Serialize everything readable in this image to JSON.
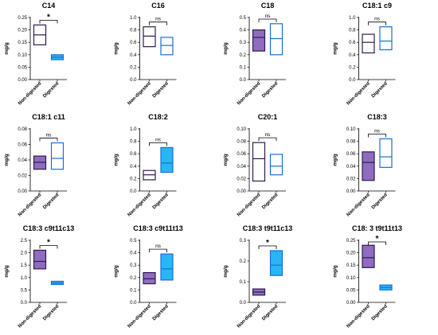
{
  "colors": {
    "nondigested_stroke": "#2e1a4f",
    "nondigested_fill": "#8f6cbf",
    "digested_stroke": "#1a6fd6",
    "digested_fill": "#29b6f6"
  },
  "chart_data": [
    {
      "type": "box",
      "title": "C14",
      "ylabel": "mg/g",
      "categories": [
        "Non-digested",
        "Digested"
      ],
      "ylim": [
        0,
        0.25
      ],
      "yticks": [
        "0.00",
        "0.05",
        "0.10",
        "0.15",
        "0.20",
        "0.25"
      ],
      "series": [
        {
          "name": "Non-digested",
          "min": 0.14,
          "median": 0.18,
          "max": 0.22,
          "filled": false
        },
        {
          "name": "Digested",
          "min": 0.08,
          "median": 0.09,
          "max": 0.1,
          "filled": true
        }
      ],
      "significance": "*"
    },
    {
      "type": "box",
      "title": "C16",
      "ylabel": "mg/g",
      "categories": [
        "Non-digested",
        "Digested"
      ],
      "ylim": [
        0,
        1.0
      ],
      "yticks": [
        "0.0",
        "0.2",
        "0.4",
        "0.6",
        "0.8",
        "1.0"
      ],
      "series": [
        {
          "name": "Non-digested",
          "min": 0.53,
          "median": 0.7,
          "max": 0.85,
          "filled": false
        },
        {
          "name": "Digested",
          "min": 0.4,
          "median": 0.55,
          "max": 0.68,
          "filled": false
        }
      ],
      "significance": "ns"
    },
    {
      "type": "box",
      "title": "C18",
      "ylabel": "mg/g",
      "categories": [
        "Non-digested",
        "Digested"
      ],
      "ylim": [
        0,
        0.5
      ],
      "yticks": [
        "0.0",
        "0.1",
        "0.2",
        "0.3",
        "0.4",
        "0.5"
      ],
      "series": [
        {
          "name": "Non-digested",
          "min": 0.23,
          "median": 0.34,
          "max": 0.4,
          "filled": true
        },
        {
          "name": "Digested",
          "min": 0.2,
          "median": 0.33,
          "max": 0.45,
          "filled": false
        }
      ],
      "significance": "ns"
    },
    {
      "type": "box",
      "title": "C18:1 c9",
      "ylabel": "mg/g",
      "categories": [
        "Non-digested",
        "Digested"
      ],
      "ylim": [
        0,
        1.0
      ],
      "yticks": [
        "0.0",
        "0.2",
        "0.4",
        "0.6",
        "0.8",
        "1.0"
      ],
      "series": [
        {
          "name": "Non-digested",
          "min": 0.43,
          "median": 0.6,
          "max": 0.73,
          "filled": false
        },
        {
          "name": "Digested",
          "min": 0.48,
          "median": 0.62,
          "max": 0.85,
          "filled": false
        }
      ],
      "significance": "ns"
    },
    {
      "type": "box",
      "title": "C18:1 c11",
      "ylabel": "mg/g",
      "categories": [
        "Non-digested",
        "Digested"
      ],
      "ylim": [
        0,
        0.08
      ],
      "yticks": [
        "0.00",
        "0.02",
        "0.04",
        "0.06",
        "0.08"
      ],
      "series": [
        {
          "name": "Non-digested",
          "min": 0.028,
          "median": 0.037,
          "max": 0.045,
          "filled": true
        },
        {
          "name": "Digested",
          "min": 0.028,
          "median": 0.042,
          "max": 0.062,
          "filled": false
        }
      ],
      "significance": "ns"
    },
    {
      "type": "box",
      "title": "C18:2",
      "ylabel": "mg/g",
      "categories": [
        "Non-digested",
        "Digested"
      ],
      "ylim": [
        0,
        1.0
      ],
      "yticks": [
        "0.0",
        "0.2",
        "0.4",
        "0.6",
        "0.8",
        "1.0"
      ],
      "series": [
        {
          "name": "Non-digested",
          "min": 0.18,
          "median": 0.26,
          "max": 0.33,
          "filled": false
        },
        {
          "name": "Digested",
          "min": 0.3,
          "median": 0.45,
          "max": 0.7,
          "filled": true
        }
      ],
      "significance": "ns"
    },
    {
      "type": "box",
      "title": "C20:1",
      "ylabel": "mg/g",
      "categories": [
        "Non-digested",
        "Digested"
      ],
      "ylim": [
        0,
        0.1
      ],
      "yticks": [
        "0.00",
        "0.02",
        "0.04",
        "0.06",
        "0.08",
        "0.10"
      ],
      "series": [
        {
          "name": "Non-digested",
          "min": 0.016,
          "median": 0.052,
          "max": 0.078,
          "filled": false
        },
        {
          "name": "Digested",
          "min": 0.026,
          "median": 0.04,
          "max": 0.059,
          "filled": false
        }
      ],
      "significance": "ns"
    },
    {
      "type": "box",
      "title": "C18:3",
      "ylabel": "mg/g",
      "categories": [
        "Non-digested",
        "Digested"
      ],
      "ylim": [
        0,
        0.1
      ],
      "yticks": [
        "0.00",
        "0.02",
        "0.04",
        "0.06",
        "0.08",
        "0.10"
      ],
      "series": [
        {
          "name": "Non-digested",
          "min": 0.017,
          "median": 0.046,
          "max": 0.063,
          "filled": true
        },
        {
          "name": "Digested",
          "min": 0.038,
          "median": 0.055,
          "max": 0.084,
          "filled": false
        }
      ],
      "significance": "ns"
    },
    {
      "type": "box",
      "title": "C18:3 c9t11c13",
      "ylabel": "mg/g",
      "categories": [
        "Non-digested",
        "Digested"
      ],
      "ylim": [
        0,
        2.5
      ],
      "yticks": [
        "0.0",
        "0.5",
        "1.0",
        "1.5",
        "2.0",
        "2.5"
      ],
      "series": [
        {
          "name": "Non-digested",
          "min": 1.35,
          "median": 1.65,
          "max": 2.1,
          "filled": true
        },
        {
          "name": "Digested",
          "min": 0.72,
          "median": 0.78,
          "max": 0.85,
          "filled": true
        }
      ],
      "significance": "*"
    },
    {
      "type": "box",
      "title": "C18:3 c9t11t13",
      "ylabel": "mg/g",
      "categories": [
        "Non-digested",
        "Digested"
      ],
      "ylim": [
        0,
        0.5
      ],
      "yticks": [
        "0.0",
        "0.1",
        "0.2",
        "0.3",
        "0.4",
        "0.5"
      ],
      "series": [
        {
          "name": "Non-digested",
          "min": 0.15,
          "median": 0.19,
          "max": 0.24,
          "filled": true
        },
        {
          "name": "Digested",
          "min": 0.18,
          "median": 0.27,
          "max": 0.39,
          "filled": true
        }
      ],
      "significance": "ns"
    },
    {
      "type": "box",
      "title": "C18:3 t9t11c13",
      "ylabel": "mg/g",
      "categories": [
        "Non-digested",
        "Digested"
      ],
      "ylim": [
        0,
        0.3
      ],
      "yticks": [
        "0.0",
        "0.1",
        "0.2",
        "0.3"
      ],
      "series": [
        {
          "name": "Non-digested",
          "min": 0.035,
          "median": 0.05,
          "max": 0.065,
          "filled": true
        },
        {
          "name": "Digested",
          "min": 0.13,
          "median": 0.18,
          "max": 0.25,
          "filled": true
        }
      ],
      "significance": "*"
    },
    {
      "type": "box",
      "title": "C18: 3 t9t11t13",
      "ylabel": "mg/g",
      "categories": [
        "Non-digested",
        "Digested"
      ],
      "ylim": [
        0,
        0.25
      ],
      "yticks": [
        "0.00",
        "0.05",
        "0.10",
        "0.15",
        "0.20",
        "0.25"
      ],
      "series": [
        {
          "name": "Non-digested",
          "min": 0.14,
          "median": 0.18,
          "max": 0.23,
          "filled": true
        },
        {
          "name": "Digested",
          "min": 0.05,
          "median": 0.06,
          "max": 0.07,
          "filled": true
        }
      ],
      "significance": "*"
    }
  ]
}
